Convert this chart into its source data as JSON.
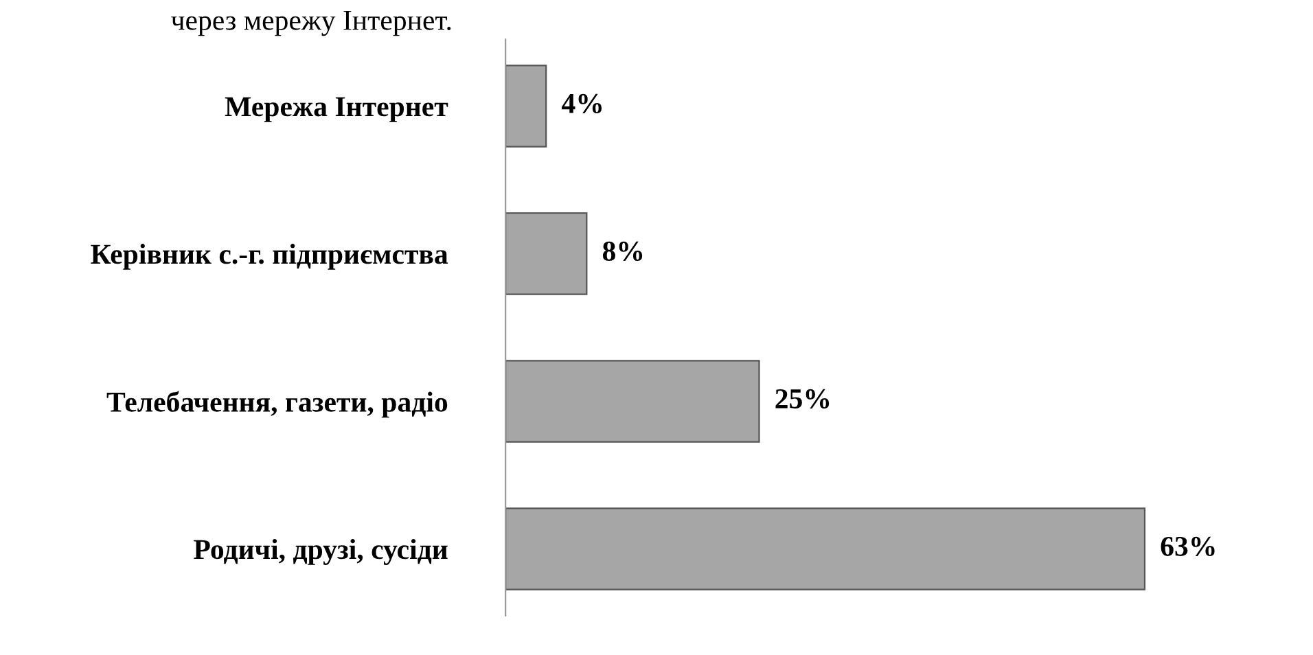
{
  "chart_data": {
    "type": "bar",
    "orientation": "horizontal",
    "categories": [
      "Мережа Інтернет",
      "Керівник с.-г. підприємства",
      "Телебачення, газети, радіо",
      "Родичі, друзі, сусіди"
    ],
    "values": [
      4,
      8,
      25,
      63
    ],
    "color": "#a6a6a6",
    "data_labels": true,
    "value_labels": [
      "4%",
      "8%",
      "25%",
      "63%"
    ],
    "annotations": [
      "через мережу Інтернет."
    ],
    "grid": false,
    "legend": false
  }
}
